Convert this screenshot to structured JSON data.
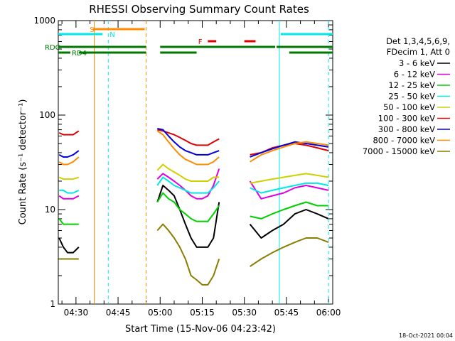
{
  "chart_data": {
    "type": "line",
    "title": "RHESSI Observing Summary Count Rates",
    "xlabel": "Start Time (15-Nov-06 04:23:42)",
    "ylabel": "Count Rate (s⁻¹ detector⁻¹)",
    "y_scale": "log",
    "ylim": [
      1,
      1000
    ],
    "y_tick_labels": [
      "1",
      "10",
      "100",
      "1000"
    ],
    "x_tick_labels": [
      "04:30",
      "04:45",
      "05:00",
      "05:15",
      "05:30",
      "05:45",
      "06:00"
    ],
    "x_tick_minutes": [
      30,
      45,
      60,
      75,
      90,
      105,
      120
    ],
    "xlim_minutes": [
      23.7,
      121.5
    ],
    "detector_info": [
      "Det 1,3,4,5,6,9,",
      "FDecim 1, Att 0"
    ],
    "legend_position": "right",
    "footer_date": "18-Oct-2021 00:04",
    "data_gaps_minutes": [
      [
        37,
        53
      ],
      [
        55,
        59
      ]
    ],
    "series": [
      {
        "name": "3 - 6 keV",
        "color": "#000000",
        "values": [
          5,
          4,
          3.5,
          3.5,
          4,
          12,
          18,
          16,
          14,
          10,
          7,
          5,
          4,
          4,
          4,
          5,
          12,
          7,
          5,
          6,
          7,
          9,
          10,
          9,
          8
        ]
      },
      {
        "name": "6 - 12 keV",
        "color": "#e000e0",
        "values": [
          14,
          13,
          13,
          13,
          14,
          21,
          24,
          22,
          20,
          18,
          16,
          14,
          13,
          13,
          14,
          18,
          27,
          20,
          13,
          14,
          15,
          17,
          18,
          17,
          16
        ]
      },
      {
        "name": "12 - 25 keV",
        "color": "#00d000",
        "values": [
          8,
          7,
          7,
          7,
          7,
          12,
          15,
          13,
          12,
          10,
          9,
          8,
          7.5,
          7.5,
          7.5,
          9,
          11,
          8.5,
          8,
          9,
          10,
          11,
          12,
          11,
          11
        ]
      },
      {
        "name": "25 - 50 keV",
        "color": "#00e8e8",
        "values": [
          16,
          16,
          15,
          15,
          16,
          18,
          22,
          20,
          18,
          17,
          16,
          15,
          15,
          15,
          15,
          17,
          20,
          17,
          15,
          16,
          17,
          18,
          19,
          19,
          18
        ]
      },
      {
        "name": "50 - 100 keV",
        "color": "#d0d000",
        "values": [
          22,
          21,
          21,
          21,
          22,
          26,
          30,
          27,
          25,
          23,
          21,
          20,
          20,
          20,
          20,
          22,
          22,
          19,
          20,
          21,
          22,
          23,
          24,
          23,
          22
        ]
      },
      {
        "name": "100 - 300 keV",
        "color": "#e00000",
        "values": [
          65,
          62,
          62,
          62,
          68,
          70,
          68,
          65,
          62,
          58,
          54,
          50,
          48,
          48,
          48,
          52,
          56,
          38,
          40,
          45,
          48,
          50,
          48,
          45,
          42
        ]
      },
      {
        "name": "300 - 800 keV",
        "color": "#0000e0",
        "values": [
          38,
          36,
          36,
          38,
          42,
          72,
          70,
          60,
          52,
          46,
          42,
          40,
          38,
          38,
          38,
          40,
          42,
          36,
          40,
          44,
          48,
          52,
          50,
          48,
          46
        ]
      },
      {
        "name": "800 - 7000 keV",
        "color": "#ff8c00",
        "values": [
          32,
          30,
          30,
          32,
          36,
          68,
          62,
          52,
          44,
          38,
          34,
          32,
          30,
          30,
          30,
          32,
          36,
          32,
          38,
          42,
          46,
          50,
          52,
          50,
          48
        ]
      },
      {
        "name": "7000 - 15000 keV",
        "color": "#8b7d00",
        "values": [
          3,
          3,
          3,
          3,
          3,
          6,
          7,
          6,
          5,
          4,
          3,
          2,
          1.8,
          1.6,
          1.6,
          2,
          3,
          2.5,
          3,
          3.5,
          4,
          4.5,
          5,
          5,
          4.5
        ]
      }
    ],
    "time_minutes": [
      [
        24,
        25.5,
        27,
        29,
        31
      ],
      [
        59,
        61,
        63,
        65,
        67,
        69,
        71,
        73,
        75,
        77,
        79,
        81
      ],
      [
        92,
        96,
        100,
        104,
        108,
        112,
        116,
        120
      ]
    ],
    "series_segment_lengths": [
      5,
      12,
      8
    ],
    "orbit_flags": [
      {
        "label": "S",
        "color": "#ff8c00",
        "bars_minutes": [
          [
            36,
            54.5
          ]
        ]
      },
      {
        "label": "N",
        "color": "#00e8e8",
        "bars_minutes": [
          [
            23.7,
            39.5
          ],
          [
            103,
            121.5
          ]
        ]
      },
      {
        "label": "F",
        "color": "#e00000",
        "bars_minutes": [
          [
            77,
            80
          ],
          [
            90,
            94
          ]
        ]
      },
      {
        "label": "RDG",
        "color": "#007800",
        "bars_minutes": [
          [
            23.7,
            55
          ],
          [
            60,
            101
          ],
          [
            101.5,
            121.5
          ]
        ]
      },
      {
        "label": "RD4",
        "color": "#007800",
        "bars_minutes": [
          [
            23.7,
            28
          ],
          [
            31,
            55
          ],
          [
            60,
            73
          ],
          [
            106,
            121.5
          ]
        ]
      }
    ],
    "markers": [
      {
        "minute": 36.5,
        "style": "solid",
        "color": "#ff8c00"
      },
      {
        "minute": 41.5,
        "style": "dashed",
        "color": "#00e8e8"
      },
      {
        "minute": 55,
        "style": "dashed",
        "color": "#ff8c00"
      },
      {
        "minute": 102.5,
        "style": "solid",
        "color": "#00e8e8"
      },
      {
        "minute": 120,
        "style": "dashed",
        "color": "#00e8e8"
      }
    ]
  }
}
